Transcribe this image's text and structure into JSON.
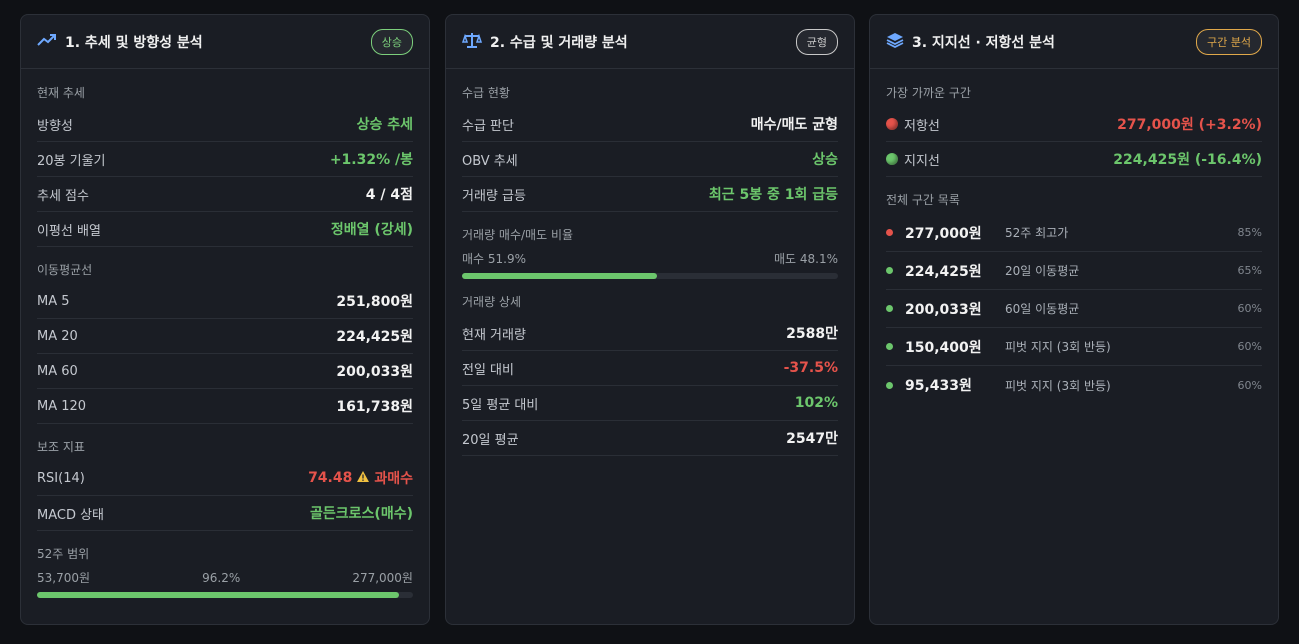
{
  "cards": [
    {
      "title": "1. 추세 및 방향성 분석",
      "badge": "상승",
      "badge_color": "#7ccf7c",
      "sections": [
        {
          "heading": "현재 추세",
          "rows": [
            {
              "label": "방향성",
              "value": "상승 추세",
              "color": "#6cc66c"
            },
            {
              "label": "20봉 기울기",
              "value": "+1.32% /봉",
              "color": "#6cc66c"
            },
            {
              "label": "추세 점수",
              "value": "4 / 4점",
              "color": "#f2f2f2"
            },
            {
              "label": "이평선 배열",
              "value": "정배열 (강세)",
              "color": "#6cc66c"
            }
          ]
        },
        {
          "heading": "이동평균선",
          "rows": [
            {
              "label": "MA 5",
              "value": "251,800원",
              "color": "#f2f2f2"
            },
            {
              "label": "MA 20",
              "value": "224,425원",
              "color": "#f2f2f2"
            },
            {
              "label": "MA 60",
              "value": "200,033원",
              "color": "#f2f2f2"
            },
            {
              "label": "MA 120",
              "value": "161,738원",
              "color": "#f2f2f2"
            }
          ]
        },
        {
          "heading": "보조 지표",
          "rows": [
            {
              "label": "RSI(14)",
              "value": "74.48",
              "note": "과매수",
              "color": "#e5534b"
            },
            {
              "label": "MACD 상태",
              "value": "골든크로스(매수)",
              "color": "#6cc66c"
            }
          ]
        },
        {
          "heading": "52주 범위",
          "range": {
            "low": "53,700원",
            "high": "277,000원",
            "position": {
              "value": 96.2,
              "label": "96.2%"
            }
          }
        }
      ]
    },
    {
      "title": "2. 수급 및 거래량 분석",
      "badge": "균형",
      "badge_color": "#c8c8c8",
      "sections": [
        {
          "heading": "수급 현황",
          "rows": [
            {
              "label": "수급 판단",
              "value": "매수/매도 균형",
              "color": "#f2f2f2"
            },
            {
              "label": "OBV 추세",
              "value": "상승",
              "color": "#6cc66c"
            },
            {
              "label": "거래량 급등",
              "value": "최근 5봉 중 1회 급등",
              "color": "#6cc66c"
            }
          ]
        },
        {
          "heading": "거래량 매수/매도 비율",
          "ratio": {
            "buy": {
              "value": 51.9,
              "label": "매수 51.9%"
            },
            "sell": {
              "value": 48.1,
              "label": "매도 48.1%"
            }
          }
        },
        {
          "heading": "거래량 상세",
          "rows": [
            {
              "label": "현재 거래량",
              "value": "2588만",
              "color": "#f2f2f2"
            },
            {
              "label": "전일 대비",
              "value": "-37.5%",
              "color": "#e5534b"
            },
            {
              "label": "5일 평균 대비",
              "value": "102%",
              "color": "#6cc66c"
            },
            {
              "label": "20일 평균",
              "value": "2547만",
              "color": "#f2f2f2"
            }
          ]
        }
      ]
    },
    {
      "title": "3. 지지선 · 저항선 분석",
      "badge": "구간 분석",
      "badge_color": "#e0a84a",
      "sections": [
        {
          "heading": "가장 가까운 구간",
          "rows": [
            {
              "label": "저항선",
              "value": "277,000원 (+3.2%)",
              "color": "#e5534b",
              "dot": "#e5534b"
            },
            {
              "label": "지지선",
              "value": "224,425원 (-16.4%)",
              "color": "#6cc66c",
              "dot": "#6cc66c"
            }
          ]
        },
        {
          "heading": "전체 구간 목록",
          "levels": [
            {
              "price": "277,000원",
              "desc": "52주 최고가",
              "strength": "85%",
              "color": "#e5534b"
            },
            {
              "price": "224,425원",
              "desc": "20일 이동평균",
              "strength": "65%",
              "color": "#6cc66c"
            },
            {
              "price": "200,033원",
              "desc": "60일 이동평균",
              "strength": "60%",
              "color": "#6cc66c"
            },
            {
              "price": "150,400원",
              "desc": "피벗 지지 (3회 반등)",
              "strength": "60%",
              "color": "#6cc66c"
            },
            {
              "price": "95,433원",
              "desc": "피벗 지지 (3회 반등)",
              "strength": "60%",
              "color": "#6cc66c"
            }
          ]
        }
      ]
    }
  ]
}
